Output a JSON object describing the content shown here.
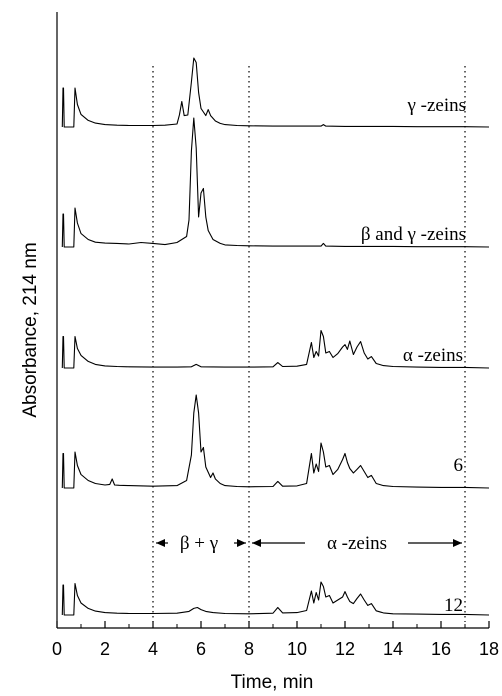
{
  "chart_data": {
    "type": "line",
    "title": "",
    "xlabel": "Time, min",
    "ylabel": "Absorbance, 214 nm",
    "xlim": [
      0,
      18
    ],
    "x_ticks": [
      "0",
      "2",
      "4",
      "6",
      "8",
      "10",
      "12",
      "14",
      "16",
      "18"
    ],
    "grid": false,
    "y_ticks_shown": false,
    "reference_lines_x": [
      4,
      8,
      17
    ],
    "regions": [
      {
        "label": "β + γ",
        "x_start": 4,
        "x_end": 8
      },
      {
        "label": "α -zeins",
        "x_start": 8,
        "x_end": 17
      }
    ],
    "series": [
      {
        "name": "γ -zeins",
        "x": [
          0.22,
          0.25,
          0.27,
          0.3,
          0.7,
          0.75,
          0.85,
          1.0,
          1.3,
          1.6,
          2.0,
          2.5,
          3.0,
          3.5,
          4.0,
          4.5,
          5.0,
          5.1,
          5.2,
          5.3,
          5.45,
          5.6,
          5.7,
          5.8,
          5.9,
          6.0,
          6.1,
          6.2,
          6.3,
          6.4,
          6.6,
          6.8,
          7.0,
          7.5,
          8.0,
          9.0,
          10.0,
          11.0,
          11.1,
          11.2,
          12.0,
          13.0,
          14.0,
          15.0,
          16.0,
          17.0,
          18.0
        ],
        "y": [
          0,
          1.3,
          1.3,
          0,
          0,
          1.3,
          0.75,
          0.42,
          0.22,
          0.13,
          0.08,
          0.06,
          0.05,
          0.05,
          0.05,
          0.06,
          0.1,
          0.4,
          0.85,
          0.38,
          0.4,
          1.5,
          2.3,
          2.15,
          1.15,
          0.62,
          0.5,
          0.38,
          0.58,
          0.38,
          0.2,
          0.12,
          0.08,
          0.05,
          0.04,
          0.03,
          0.03,
          0.03,
          0.08,
          0.03,
          0.02,
          0.02,
          0.02,
          0.01,
          0.01,
          0.01,
          0.0
        ]
      },
      {
        "name": "β and γ -zeins",
        "x": [
          0.22,
          0.25,
          0.27,
          0.3,
          0.7,
          0.75,
          0.85,
          1.0,
          1.3,
          1.6,
          2.0,
          2.5,
          3.0,
          3.5,
          4.0,
          4.5,
          5.0,
          5.2,
          5.4,
          5.5,
          5.6,
          5.7,
          5.8,
          5.9,
          6.0,
          6.1,
          6.2,
          6.3,
          6.5,
          6.8,
          7.0,
          7.5,
          8.0,
          9.0,
          10.0,
          11.0,
          11.1,
          11.2,
          12.0,
          13.0,
          14.0,
          15.0,
          16.0,
          17.0,
          18.0
        ],
        "y": [
          0,
          1.1,
          1.1,
          0,
          0,
          1.3,
          0.8,
          0.45,
          0.25,
          0.16,
          0.13,
          0.12,
          0.1,
          0.15,
          0.12,
          0.08,
          0.15,
          0.25,
          0.35,
          0.9,
          3.2,
          4.3,
          3.3,
          1.0,
          1.8,
          1.95,
          1.0,
          0.55,
          0.25,
          0.12,
          0.07,
          0.05,
          0.04,
          0.03,
          0.03,
          0.03,
          0.12,
          0.03,
          0.02,
          0.02,
          0.02,
          0.01,
          0.01,
          0.01,
          0.0
        ]
      },
      {
        "name": "α -zeins",
        "x": [
          0.22,
          0.25,
          0.27,
          0.3,
          0.7,
          0.75,
          0.85,
          1.0,
          1.3,
          1.6,
          2.0,
          2.5,
          3.0,
          4.0,
          5.0,
          5.6,
          5.8,
          6.0,
          7.0,
          8.0,
          9.0,
          9.2,
          9.4,
          10.0,
          10.4,
          10.6,
          10.7,
          10.8,
          10.9,
          11.0,
          11.1,
          11.2,
          11.35,
          11.5,
          11.7,
          11.9,
          12.0,
          12.1,
          12.2,
          12.35,
          12.5,
          12.65,
          12.8,
          12.95,
          13.1,
          13.3,
          13.6,
          14.0,
          15.0,
          16.0,
          17.0,
          18.0
        ],
        "y": [
          0,
          1.05,
          1.05,
          0,
          0,
          1.05,
          0.65,
          0.42,
          0.22,
          0.12,
          0.07,
          0.05,
          0.04,
          0.03,
          0.03,
          0.04,
          0.12,
          0.04,
          0.03,
          0.03,
          0.04,
          0.18,
          0.05,
          0.06,
          0.12,
          0.85,
          0.35,
          0.55,
          0.4,
          1.25,
          1.05,
          0.5,
          0.55,
          0.35,
          0.48,
          0.7,
          0.78,
          0.62,
          0.9,
          0.45,
          0.7,
          0.88,
          0.5,
          0.3,
          0.38,
          0.15,
          0.08,
          0.05,
          0.03,
          0.02,
          0.02,
          0.0
        ]
      },
      {
        "name": "6",
        "x": [
          0.22,
          0.25,
          0.27,
          0.3,
          0.7,
          0.75,
          0.85,
          1.0,
          1.3,
          1.6,
          2.0,
          2.2,
          2.3,
          2.4,
          2.6,
          3.0,
          4.0,
          5.0,
          5.4,
          5.6,
          5.7,
          5.8,
          5.9,
          6.0,
          6.1,
          6.2,
          6.4,
          6.5,
          6.6,
          6.8,
          7.0,
          7.5,
          8.0,
          9.0,
          9.2,
          9.4,
          10.0,
          10.4,
          10.6,
          10.7,
          10.8,
          10.9,
          11.0,
          11.1,
          11.2,
          11.35,
          11.5,
          11.7,
          11.9,
          12.0,
          12.1,
          12.2,
          12.35,
          12.5,
          12.65,
          12.8,
          12.95,
          13.1,
          13.3,
          13.6,
          14.0,
          15.0,
          16.0,
          17.0,
          18.0
        ],
        "y": [
          0,
          1.15,
          1.15,
          0,
          0,
          1.2,
          0.75,
          0.45,
          0.25,
          0.15,
          0.1,
          0.12,
          0.3,
          0.1,
          0.09,
          0.08,
          0.06,
          0.08,
          0.25,
          1.1,
          2.5,
          3.1,
          2.5,
          1.2,
          1.35,
          0.7,
          0.35,
          0.5,
          0.3,
          0.15,
          0.08,
          0.05,
          0.04,
          0.05,
          0.22,
          0.06,
          0.07,
          0.15,
          1.15,
          0.5,
          0.8,
          0.55,
          1.5,
          1.2,
          0.7,
          0.75,
          0.45,
          0.62,
          0.95,
          1.15,
          0.85,
          0.65,
          0.5,
          0.62,
          0.75,
          0.55,
          0.35,
          0.42,
          0.15,
          0.08,
          0.05,
          0.03,
          0.02,
          0.02,
          0.0
        ]
      },
      {
        "name": "12",
        "x": [
          0.22,
          0.25,
          0.27,
          0.3,
          0.7,
          0.75,
          0.85,
          1.0,
          1.3,
          1.6,
          2.0,
          2.5,
          3.0,
          4.0,
          5.0,
          5.5,
          5.7,
          5.85,
          6.0,
          6.2,
          6.5,
          7.0,
          8.0,
          9.0,
          9.2,
          9.4,
          10.0,
          10.4,
          10.6,
          10.7,
          10.8,
          10.9,
          11.0,
          11.1,
          11.2,
          11.35,
          11.5,
          11.7,
          11.9,
          12.0,
          12.1,
          12.2,
          12.35,
          12.5,
          12.65,
          12.8,
          12.95,
          13.1,
          13.3,
          13.6,
          14.0,
          15.0,
          16.0,
          17.0,
          18.0
        ],
        "y": [
          0,
          1.0,
          1.0,
          0,
          0,
          1.05,
          0.65,
          0.4,
          0.22,
          0.13,
          0.08,
          0.06,
          0.05,
          0.05,
          0.06,
          0.12,
          0.22,
          0.25,
          0.18,
          0.12,
          0.08,
          0.05,
          0.04,
          0.06,
          0.25,
          0.07,
          0.08,
          0.15,
          0.8,
          0.4,
          0.75,
          0.5,
          1.1,
          0.95,
          0.6,
          0.65,
          0.4,
          0.5,
          0.6,
          0.78,
          0.6,
          0.45,
          0.38,
          0.55,
          0.7,
          0.5,
          0.32,
          0.38,
          0.14,
          0.07,
          0.04,
          0.03,
          0.02,
          0.02,
          0.0
        ]
      }
    ]
  }
}
